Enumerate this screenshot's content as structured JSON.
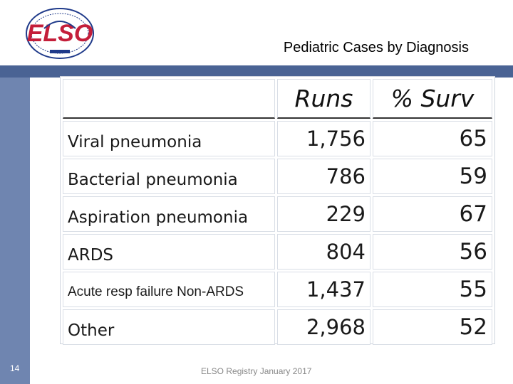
{
  "slide": {
    "title": "Pediatric Cases by Diagnosis",
    "page_number": "14",
    "footer": "ELSO Registry January 2017",
    "logo_text": "ELSO",
    "colors": {
      "top_bar": "#4a6394",
      "side_bar": "#6f85b0",
      "logo_red": "#c41e3a",
      "logo_blue": "#1f3a8a"
    }
  },
  "table": {
    "headers": {
      "label": "",
      "runs": "Runs",
      "surv": "% Surv"
    },
    "rows": [
      {
        "label": "Viral pneumonia",
        "runs": "1,756",
        "surv": "65"
      },
      {
        "label": "Bacterial pneumonia",
        "runs": "786",
        "surv": "59"
      },
      {
        "label": "Aspiration pneumonia",
        "runs": "229",
        "surv": "67"
      },
      {
        "label": "ARDS",
        "runs": "804",
        "surv": "56"
      },
      {
        "label": "Acute resp failure Non-ARDS",
        "runs": "1,437",
        "surv": "55"
      },
      {
        "label": "Other",
        "runs": "2,968",
        "surv": "52"
      }
    ]
  }
}
